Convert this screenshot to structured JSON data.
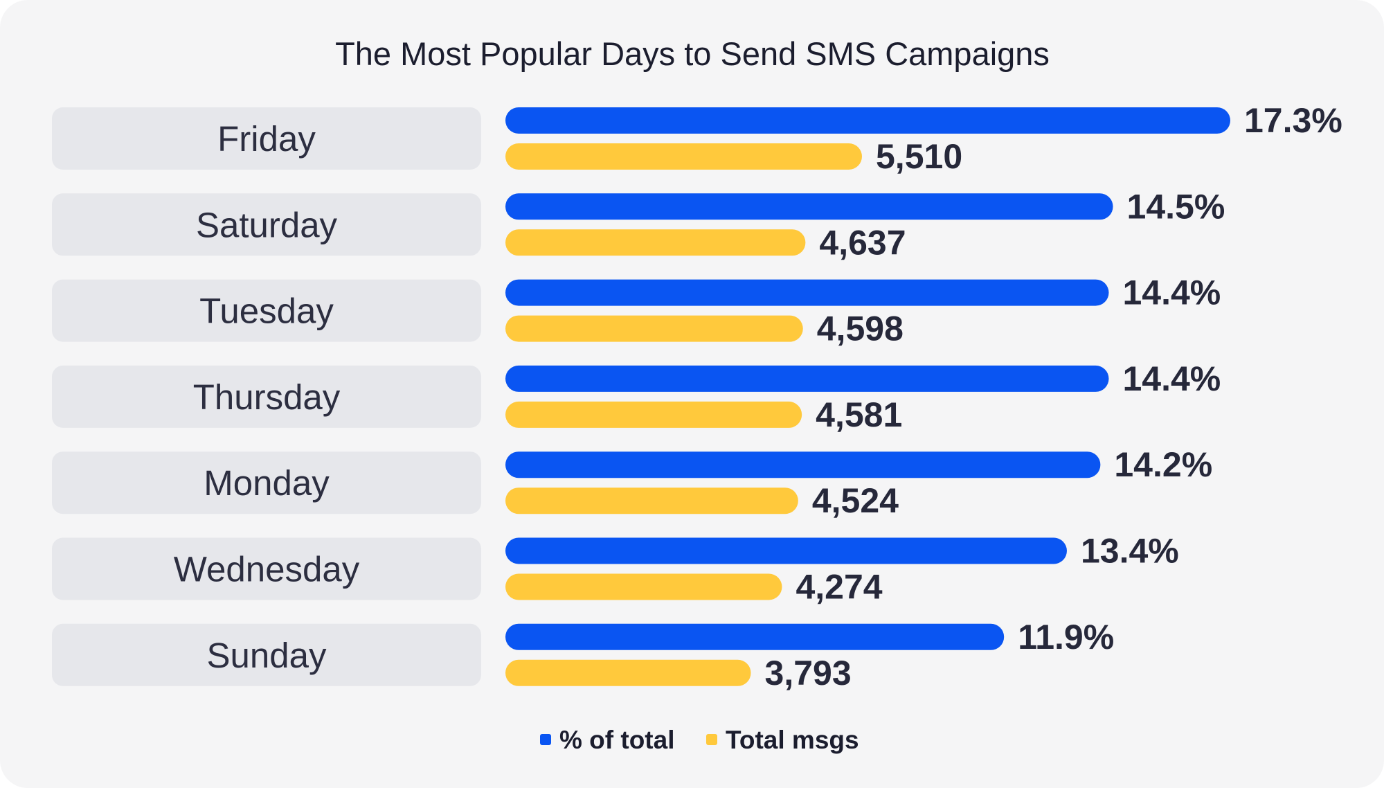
{
  "chart_data": {
    "type": "bar",
    "orientation": "horizontal",
    "title": "The Most Popular Days to Send SMS Campaigns",
    "categories": [
      "Friday",
      "Saturday",
      "Tuesday",
      "Thursday",
      "Monday",
      "Wednesday",
      "Sunday"
    ],
    "series": [
      {
        "name": "% of total",
        "color": "#0a55f2",
        "values": [
          17.3,
          14.5,
          14.4,
          14.4,
          14.2,
          13.4,
          11.9
        ],
        "labels": [
          "17.3%",
          "14.5%",
          "14.4%",
          "14.4%",
          "14.2%",
          "13.4%",
          "11.9%"
        ]
      },
      {
        "name": "Total msgs",
        "color": "#ffc93c",
        "values": [
          5510,
          4637,
          4598,
          4581,
          4524,
          4274,
          3793
        ],
        "labels": [
          "5,510",
          "4,637",
          "4,598",
          "4,581",
          "4,524",
          "4,274",
          "3,793"
        ]
      }
    ],
    "legend_position": "bottom-center",
    "grid": false,
    "category_label_background": "#e6e7eb"
  }
}
